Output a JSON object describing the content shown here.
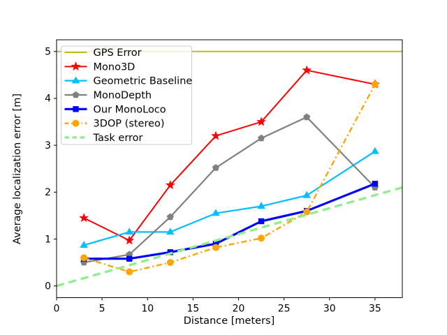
{
  "figure": {
    "background": "#ffffff",
    "border_color": "#000000"
  },
  "chart_data": {
    "type": "line",
    "title": "",
    "xlabel": "Distance [meters]",
    "ylabel": "Average localization error [m]",
    "xlim": [
      0,
      38
    ],
    "ylim": [
      -0.25,
      5.25
    ],
    "xticks": [
      0,
      5,
      10,
      15,
      20,
      25,
      30,
      35
    ],
    "yticks": [
      0,
      1,
      2,
      3,
      4,
      5
    ],
    "grid": false,
    "legend_position": "upper-left",
    "x": [
      3,
      8,
      12.5,
      17.5,
      22.5,
      27.5,
      35
    ],
    "series": [
      {
        "name": "GPS Error",
        "color": "#bcbd22",
        "line": "solid",
        "marker": "none",
        "kind": "hline",
        "y": 5.0
      },
      {
        "name": "Mono3D",
        "color": "#ff0000",
        "line": "solid",
        "marker": "star",
        "values": [
          1.45,
          0.97,
          2.15,
          3.2,
          3.5,
          4.6,
          4.3
        ]
      },
      {
        "name": "Geometric Baseline",
        "color": "#00bfff",
        "line": "solid",
        "marker": "triangle",
        "values": [
          0.87,
          1.15,
          1.15,
          1.55,
          1.7,
          1.93,
          2.87
        ]
      },
      {
        "name": "MonoDepth",
        "color": "#808080",
        "line": "solid",
        "marker": "pentagon",
        "values": [
          0.5,
          0.67,
          1.47,
          2.52,
          3.15,
          3.6,
          2.1
        ]
      },
      {
        "name": "Our MonoLoco",
        "color": "#0000ff",
        "line": "solid",
        "marker": "square",
        "values": [
          0.58,
          0.58,
          0.72,
          0.9,
          1.38,
          1.6,
          2.18
        ]
      },
      {
        "name": "3DOP (stereo)",
        "color": "#ffa500",
        "line": "dashdot",
        "marker": "circle",
        "values": [
          0.6,
          0.3,
          0.5,
          0.82,
          1.02,
          1.58,
          4.3
        ]
      },
      {
        "name": "Task error",
        "color": "#90ee90",
        "line": "dashed",
        "marker": "none",
        "kind": "segment",
        "points": [
          [
            0,
            0.0
          ],
          [
            38,
            2.1
          ]
        ]
      }
    ]
  }
}
